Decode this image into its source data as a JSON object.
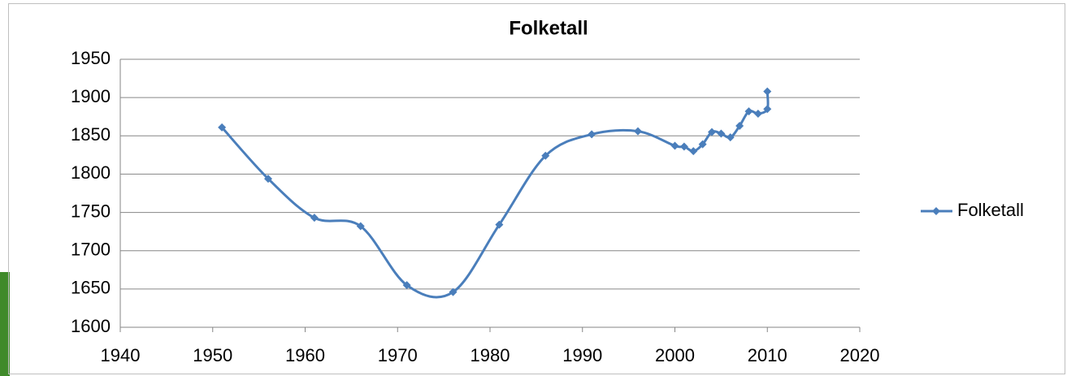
{
  "chart_data": {
    "type": "line",
    "title": "Folketall",
    "smooth": true,
    "grid": true,
    "legend": "right",
    "x": [
      1951,
      1956,
      1961,
      1966,
      1971,
      1976,
      1981,
      1986,
      1991,
      1996,
      2000,
      2001,
      2002,
      2003,
      2004,
      2005,
      2006,
      2007,
      2008,
      2009,
      2010,
      2010
    ],
    "series": [
      {
        "name": "Folketall",
        "color": "#4a7ebb",
        "values": [
          1861,
          1794,
          1743,
          1732,
          1655,
          1646,
          1734,
          1824,
          1852,
          1856,
          1837,
          1836,
          1830,
          1839,
          1855,
          1853,
          1848,
          1863,
          1882,
          1879,
          1885,
          1908
        ]
      }
    ],
    "xlim": [
      1940,
      2020
    ],
    "xticks": [
      1940,
      1950,
      1960,
      1970,
      1980,
      1990,
      2000,
      2010,
      2020
    ],
    "ylim": [
      1600,
      1950
    ],
    "yticks": [
      1600,
      1650,
      1700,
      1750,
      1800,
      1850,
      1900,
      1950
    ]
  }
}
